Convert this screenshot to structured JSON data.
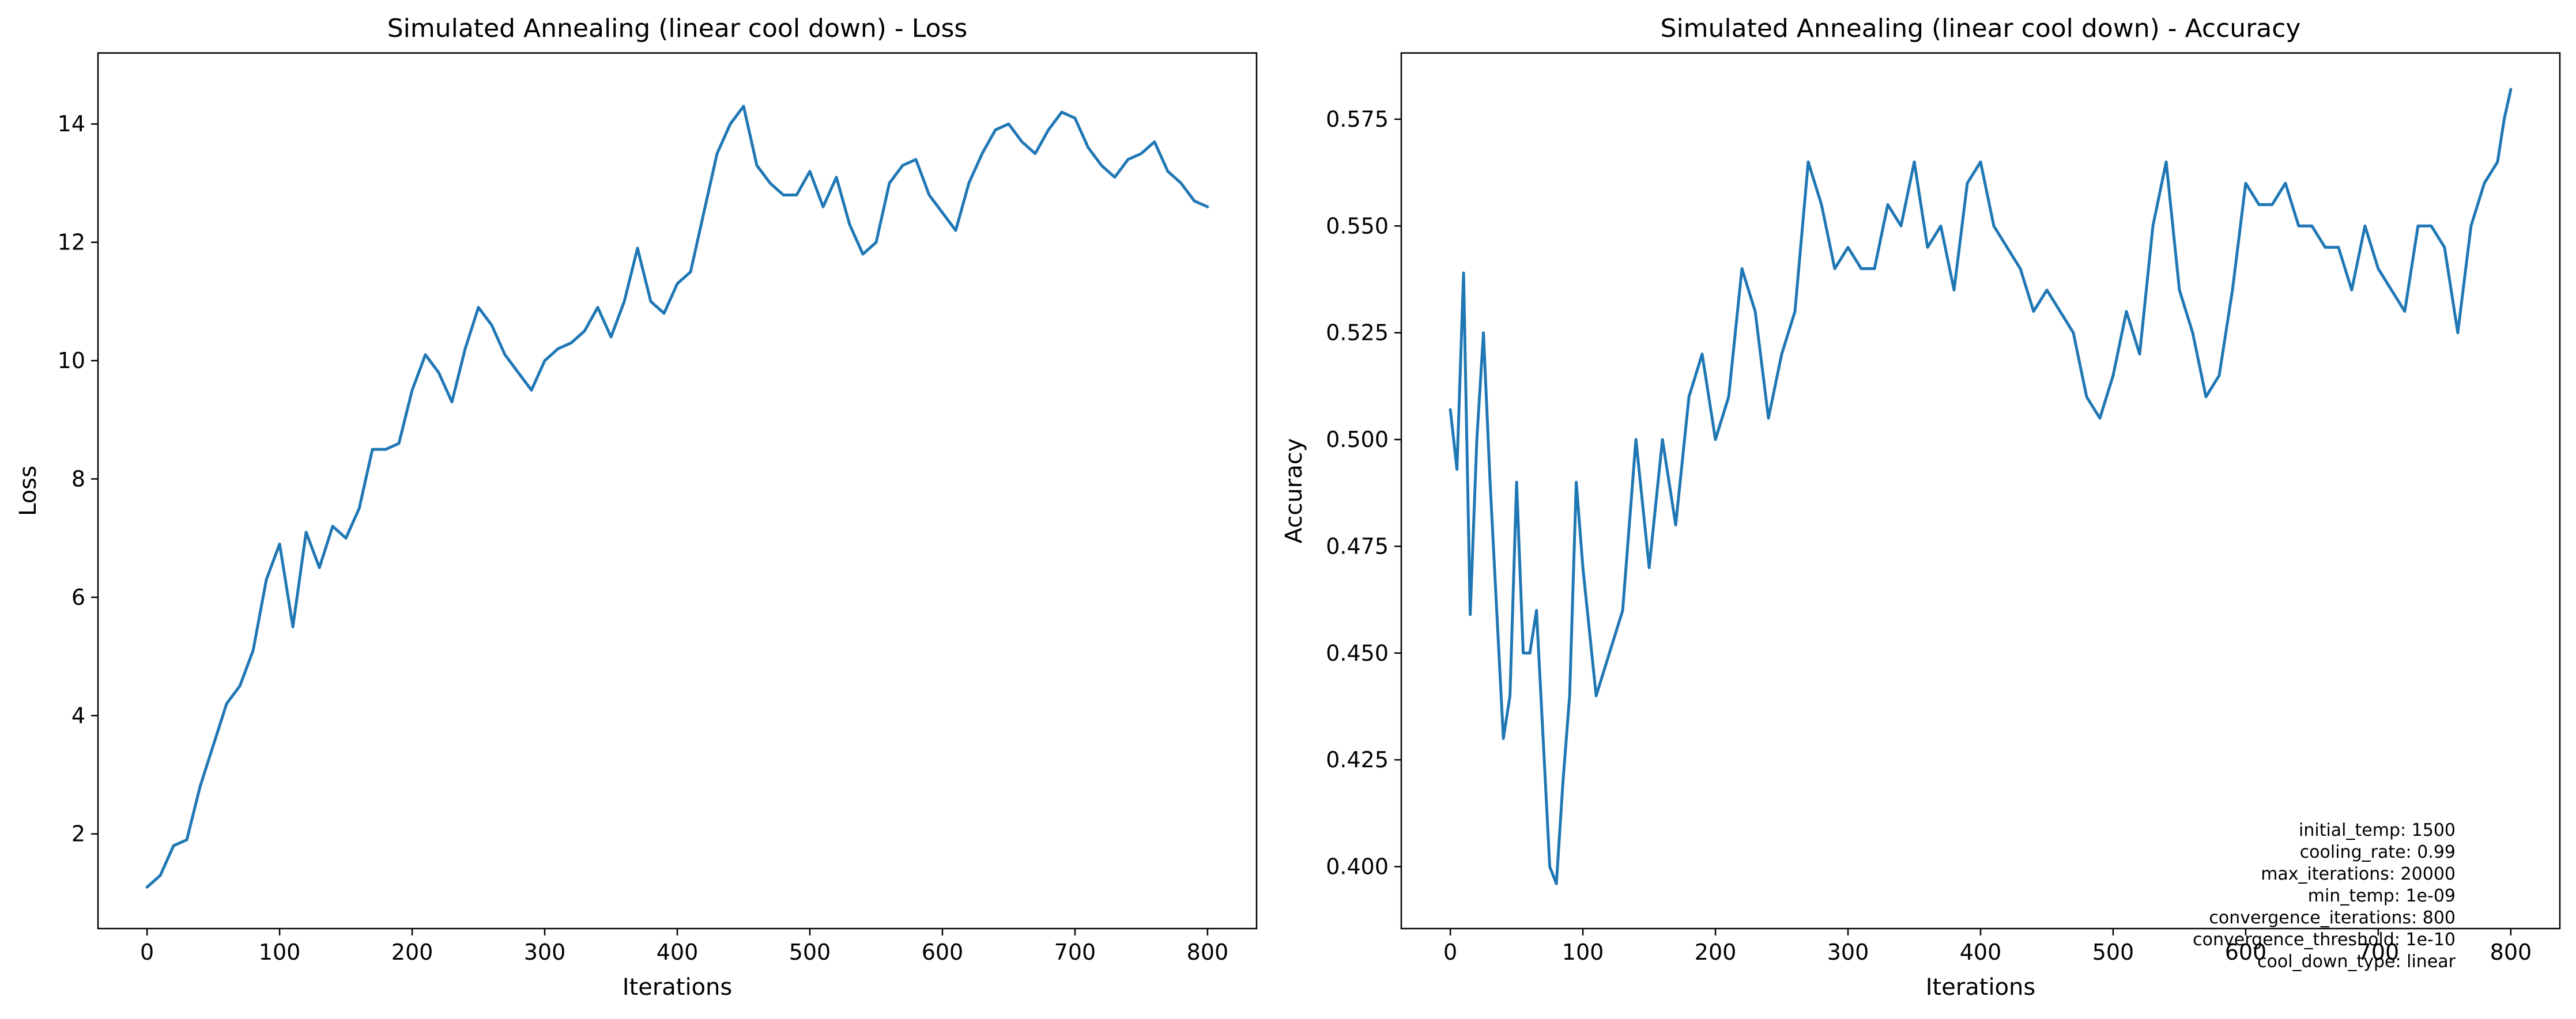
{
  "chart_data": [
    {
      "type": "line",
      "title": "Simulated Annealing (linear cool down) - Loss",
      "xlabel": "Iterations",
      "ylabel": "Loss",
      "xlim": [
        -37,
        837
      ],
      "ylim": [
        0.4,
        15.2
      ],
      "xticks": [
        0,
        100,
        200,
        300,
        400,
        500,
        600,
        700,
        800
      ],
      "yticks": [
        2,
        4,
        6,
        8,
        10,
        12,
        14
      ],
      "grid": false,
      "legend": "none",
      "color": "#1f77b4",
      "series": [
        {
          "x": [
            0,
            10,
            20,
            30,
            40,
            50,
            60,
            70,
            80,
            90,
            100,
            110,
            120,
            130,
            140,
            150,
            160,
            170,
            180,
            190,
            200,
            210,
            220,
            230,
            240,
            250,
            260,
            270,
            280,
            290,
            300,
            310,
            320,
            330,
            340,
            350,
            360,
            370,
            380,
            390,
            400,
            410,
            420,
            430,
            440,
            450,
            460,
            470,
            480,
            490,
            500,
            510,
            520,
            530,
            540,
            550,
            560,
            570,
            580,
            590,
            600,
            610,
            620,
            630,
            640,
            650,
            660,
            670,
            680,
            690,
            700,
            710,
            720,
            730,
            740,
            750,
            760,
            770,
            780,
            790,
            800
          ],
          "values": [
            1.1,
            1.3,
            1.8,
            1.9,
            2.8,
            3.5,
            4.2,
            4.5,
            5.1,
            6.3,
            6.9,
            5.5,
            7.1,
            6.5,
            7.2,
            7.0,
            7.5,
            8.5,
            8.5,
            8.6,
            9.5,
            10.1,
            9.8,
            9.3,
            10.2,
            10.9,
            10.6,
            10.1,
            9.8,
            9.5,
            10.0,
            10.2,
            10.3,
            10.5,
            10.9,
            10.4,
            11.0,
            11.9,
            11.0,
            10.8,
            11.3,
            11.5,
            12.5,
            13.5,
            14.0,
            14.3,
            13.3,
            13.0,
            12.8,
            12.8,
            13.2,
            12.6,
            13.1,
            12.3,
            11.8,
            12.0,
            13.0,
            13.3,
            13.4,
            12.8,
            12.5,
            12.2,
            13.0,
            13.5,
            13.9,
            14.0,
            13.7,
            13.5,
            13.9,
            14.2,
            14.1,
            13.6,
            13.3,
            13.1,
            13.4,
            13.5,
            13.7,
            13.2,
            13.0,
            12.7,
            12.6
          ]
        }
      ]
    },
    {
      "type": "line",
      "title": "Simulated Annealing (linear cool down) - Accuracy",
      "xlabel": "Iterations",
      "ylabel": "Accuracy",
      "xlim": [
        -37,
        837
      ],
      "ylim": [
        0.3855,
        0.5905
      ],
      "xticks": [
        0,
        100,
        200,
        300,
        400,
        500,
        600,
        700,
        800
      ],
      "yticks": [
        0.4,
        0.425,
        0.45,
        0.475,
        0.5,
        0.525,
        0.55,
        0.575
      ],
      "grid": false,
      "legend": "none",
      "color": "#1f77b4",
      "series": [
        {
          "x": [
            0,
            5,
            10,
            15,
            20,
            25,
            30,
            35,
            40,
            45,
            50,
            55,
            60,
            65,
            70,
            75,
            80,
            85,
            90,
            95,
            100,
            110,
            120,
            130,
            140,
            150,
            160,
            170,
            180,
            190,
            200,
            210,
            220,
            230,
            240,
            250,
            260,
            270,
            280,
            290,
            300,
            310,
            320,
            330,
            340,
            350,
            360,
            370,
            380,
            390,
            400,
            410,
            420,
            430,
            440,
            450,
            460,
            470,
            480,
            490,
            500,
            510,
            520,
            530,
            540,
            550,
            560,
            570,
            580,
            590,
            600,
            610,
            620,
            630,
            640,
            650,
            660,
            670,
            680,
            690,
            700,
            710,
            720,
            730,
            740,
            750,
            760,
            770,
            780,
            790,
            795,
            800
          ],
          "values": [
            0.507,
            0.493,
            0.539,
            0.459,
            0.5,
            0.525,
            0.49,
            0.46,
            0.43,
            0.44,
            0.49,
            0.45,
            0.45,
            0.46,
            0.43,
            0.4,
            0.396,
            0.42,
            0.44,
            0.49,
            0.47,
            0.44,
            0.45,
            0.46,
            0.5,
            0.47,
            0.5,
            0.48,
            0.51,
            0.52,
            0.5,
            0.51,
            0.54,
            0.53,
            0.505,
            0.52,
            0.53,
            0.565,
            0.555,
            0.54,
            0.545,
            0.54,
            0.54,
            0.555,
            0.55,
            0.565,
            0.545,
            0.55,
            0.535,
            0.56,
            0.565,
            0.55,
            0.545,
            0.54,
            0.53,
            0.535,
            0.53,
            0.525,
            0.51,
            0.505,
            0.515,
            0.53,
            0.52,
            0.55,
            0.565,
            0.535,
            0.525,
            0.51,
            0.515,
            0.535,
            0.56,
            0.555,
            0.555,
            0.56,
            0.55,
            0.55,
            0.545,
            0.545,
            0.535,
            0.55,
            0.54,
            0.535,
            0.53,
            0.55,
            0.55,
            0.545,
            0.525,
            0.55,
            0.56,
            0.565,
            0.575,
            0.582
          ]
        }
      ],
      "annotations": [
        "initial_temp: 1500",
        "cooling_rate: 0.99",
        "max_iterations: 20000",
        "min_temp: 1e-09",
        "convergence_iterations: 800",
        "convergence_threshold: 1e-10",
        "cool_down_type: linear"
      ]
    }
  ]
}
